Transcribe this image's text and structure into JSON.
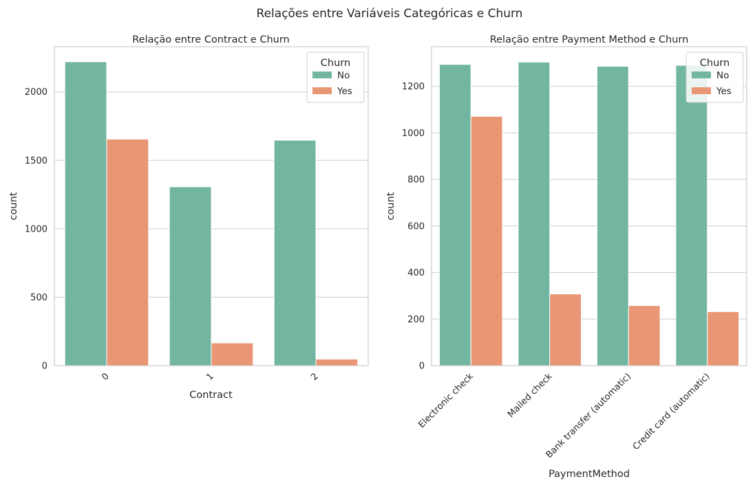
{
  "figure": {
    "title": "Relações entre Variáveis Categóricas e Churn"
  },
  "colors": {
    "No": "#72b6a1",
    "Yes": "#e99675",
    "grid": "#cccccc",
    "spine": "#cccccc"
  },
  "chart_data": [
    {
      "type": "bar",
      "title": "Relação entre Contract e Churn",
      "xlabel": "Contract",
      "ylabel": "count",
      "categories": [
        "0",
        "1",
        "2"
      ],
      "series": [
        {
          "name": "No",
          "values": [
            2220,
            1307,
            1647
          ]
        },
        {
          "name": "Yes",
          "values": [
            1655,
            166,
            48
          ]
        }
      ],
      "ylim": [
        0,
        2330
      ],
      "yticks": [
        0,
        500,
        1000,
        1500,
        2000
      ],
      "grid": true,
      "legend": {
        "title": "Churn",
        "placement": "top-right"
      },
      "xtick_rotation": -45
    },
    {
      "type": "bar",
      "title": "Relação entre Payment Method e Churn",
      "xlabel": "PaymentMethod",
      "ylabel": "count",
      "categories": [
        "Electronic check",
        "Mailed check",
        "Bank transfer (automatic)",
        "Credit card (automatic)"
      ],
      "series": [
        {
          "name": "No",
          "values": [
            1294,
            1304,
            1286,
            1290
          ]
        },
        {
          "name": "Yes",
          "values": [
            1071,
            308,
            258,
            232
          ]
        }
      ],
      "ylim": [
        0,
        1370
      ],
      "yticks": [
        0,
        200,
        400,
        600,
        800,
        1000,
        1200
      ],
      "grid": true,
      "legend": {
        "title": "Churn",
        "placement": "top-right"
      },
      "xtick_rotation": -45
    }
  ]
}
